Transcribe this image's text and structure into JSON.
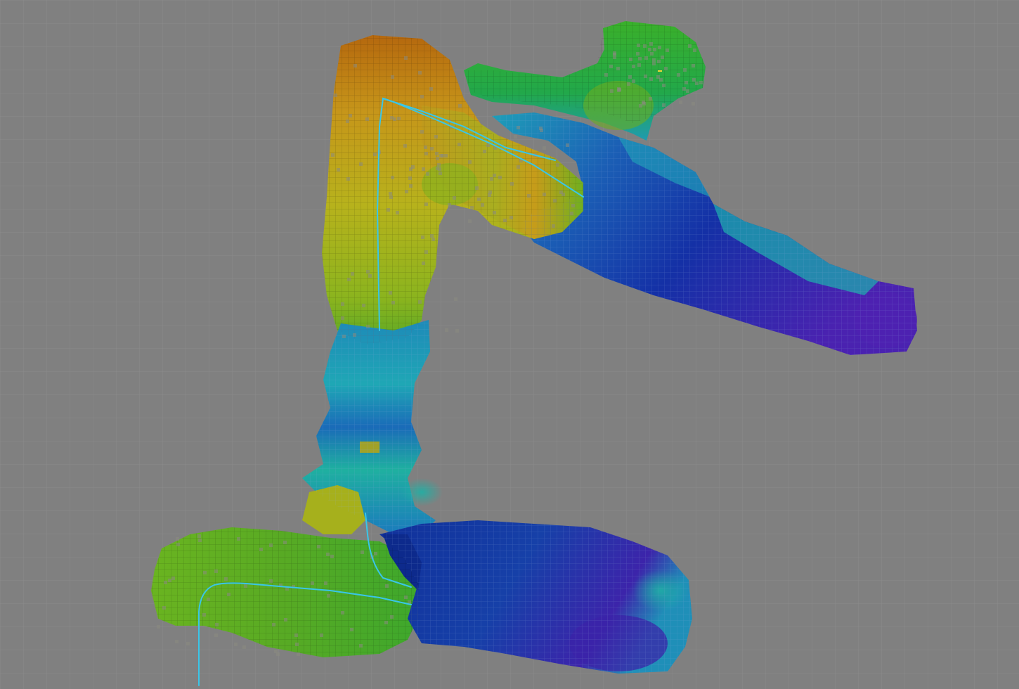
{
  "view": {
    "background_color": "#808080",
    "grid_color": "#8c8c8c",
    "fine_grid_color": "#5a6a4a",
    "path_color": "#39c6e8"
  },
  "colormap": {
    "name": "height-rainbow",
    "stops": [
      "#5a1fb5",
      "#1a2aa8",
      "#0f4fb8",
      "#1e9ec0",
      "#1fb89a",
      "#22a83a",
      "#6cb020",
      "#b5b518",
      "#c89a1a",
      "#b56a10"
    ]
  },
  "map_layers": [
    {
      "name": "occupancy-grid"
    },
    {
      "name": "elevation-map"
    },
    {
      "name": "robot-path"
    },
    {
      "name": "grid-overlay"
    }
  ]
}
